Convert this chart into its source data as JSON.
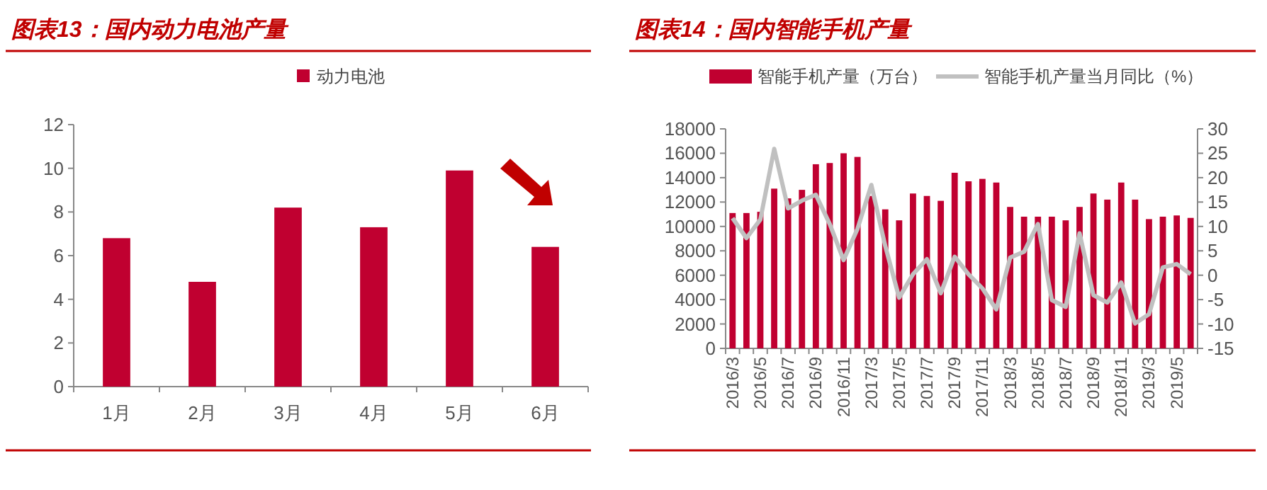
{
  "chart_data": [
    {
      "type": "bar",
      "title": "图表13：国内动力电池产量",
      "categories": [
        "1月",
        "2月",
        "3月",
        "4月",
        "5月",
        "6月"
      ],
      "series": [
        {
          "name": "动力电池",
          "color": "#c00030",
          "values": [
            6.8,
            4.8,
            8.2,
            7.3,
            9.9,
            6.4
          ]
        }
      ],
      "ylim": [
        0,
        12
      ],
      "yticks": [
        0,
        2,
        4,
        6,
        8,
        10,
        12
      ],
      "legend": "top"
    },
    {
      "type": "bar",
      "title": "图表14：国内智能手机产量",
      "categories": [
        "2016/3",
        null,
        "2016/5",
        null,
        "2016/7",
        null,
        "2016/9",
        null,
        "2016/11",
        null,
        "2017/3",
        null,
        "2017/5",
        null,
        "2017/7",
        null,
        "2017/9",
        null,
        "2017/11",
        null,
        "2018/3",
        null,
        "2018/5",
        null,
        "2018/7",
        null,
        "2018/9",
        null,
        "2018/11",
        null,
        "2019/3",
        null,
        "2019/5",
        null
      ],
      "series": [
        {
          "name": "智能手机产量（万台）",
          "color": "#c00030",
          "values": [
            11100,
            11100,
            11200,
            13100,
            12300,
            13000,
            15100,
            15200,
            16000,
            15700,
            12500,
            11400,
            10500,
            12700,
            12500,
            12100,
            14400,
            13700,
            13900,
            13600,
            11600,
            10800,
            10800,
            10800,
            10500,
            11600,
            12700,
            12200,
            13600,
            12200,
            10600,
            10800,
            10900,
            10700
          ]
        },
        {
          "name": "智能手机产量当月同比（%）",
          "type": "line",
          "axis": "y2",
          "color": "#c0c0c0",
          "values": [
            11.7,
            7.6,
            11.4,
            25.9,
            13.7,
            15.3,
            16.5,
            10.5,
            3.1,
            9.5,
            18.5,
            6,
            -4.6,
            0.2,
            3.3,
            -3.7,
            3.8,
            0.2,
            -2.7,
            -7,
            3.6,
            4.8,
            10.5,
            -5.1,
            -6.5,
            8.6,
            -4.1,
            -5.6,
            -1.5,
            -9.9,
            -8,
            1.6,
            2.3,
            0.2
          ]
        }
      ],
      "ylim": [
        0,
        18000
      ],
      "yticks": [
        0,
        2000,
        4000,
        6000,
        8000,
        10000,
        12000,
        14000,
        16000,
        18000
      ],
      "y2lim": [
        -15,
        30
      ],
      "y2ticks": [
        -15,
        -10,
        -5,
        0,
        5,
        10,
        15,
        20,
        25,
        30
      ],
      "legend": "top"
    }
  ]
}
